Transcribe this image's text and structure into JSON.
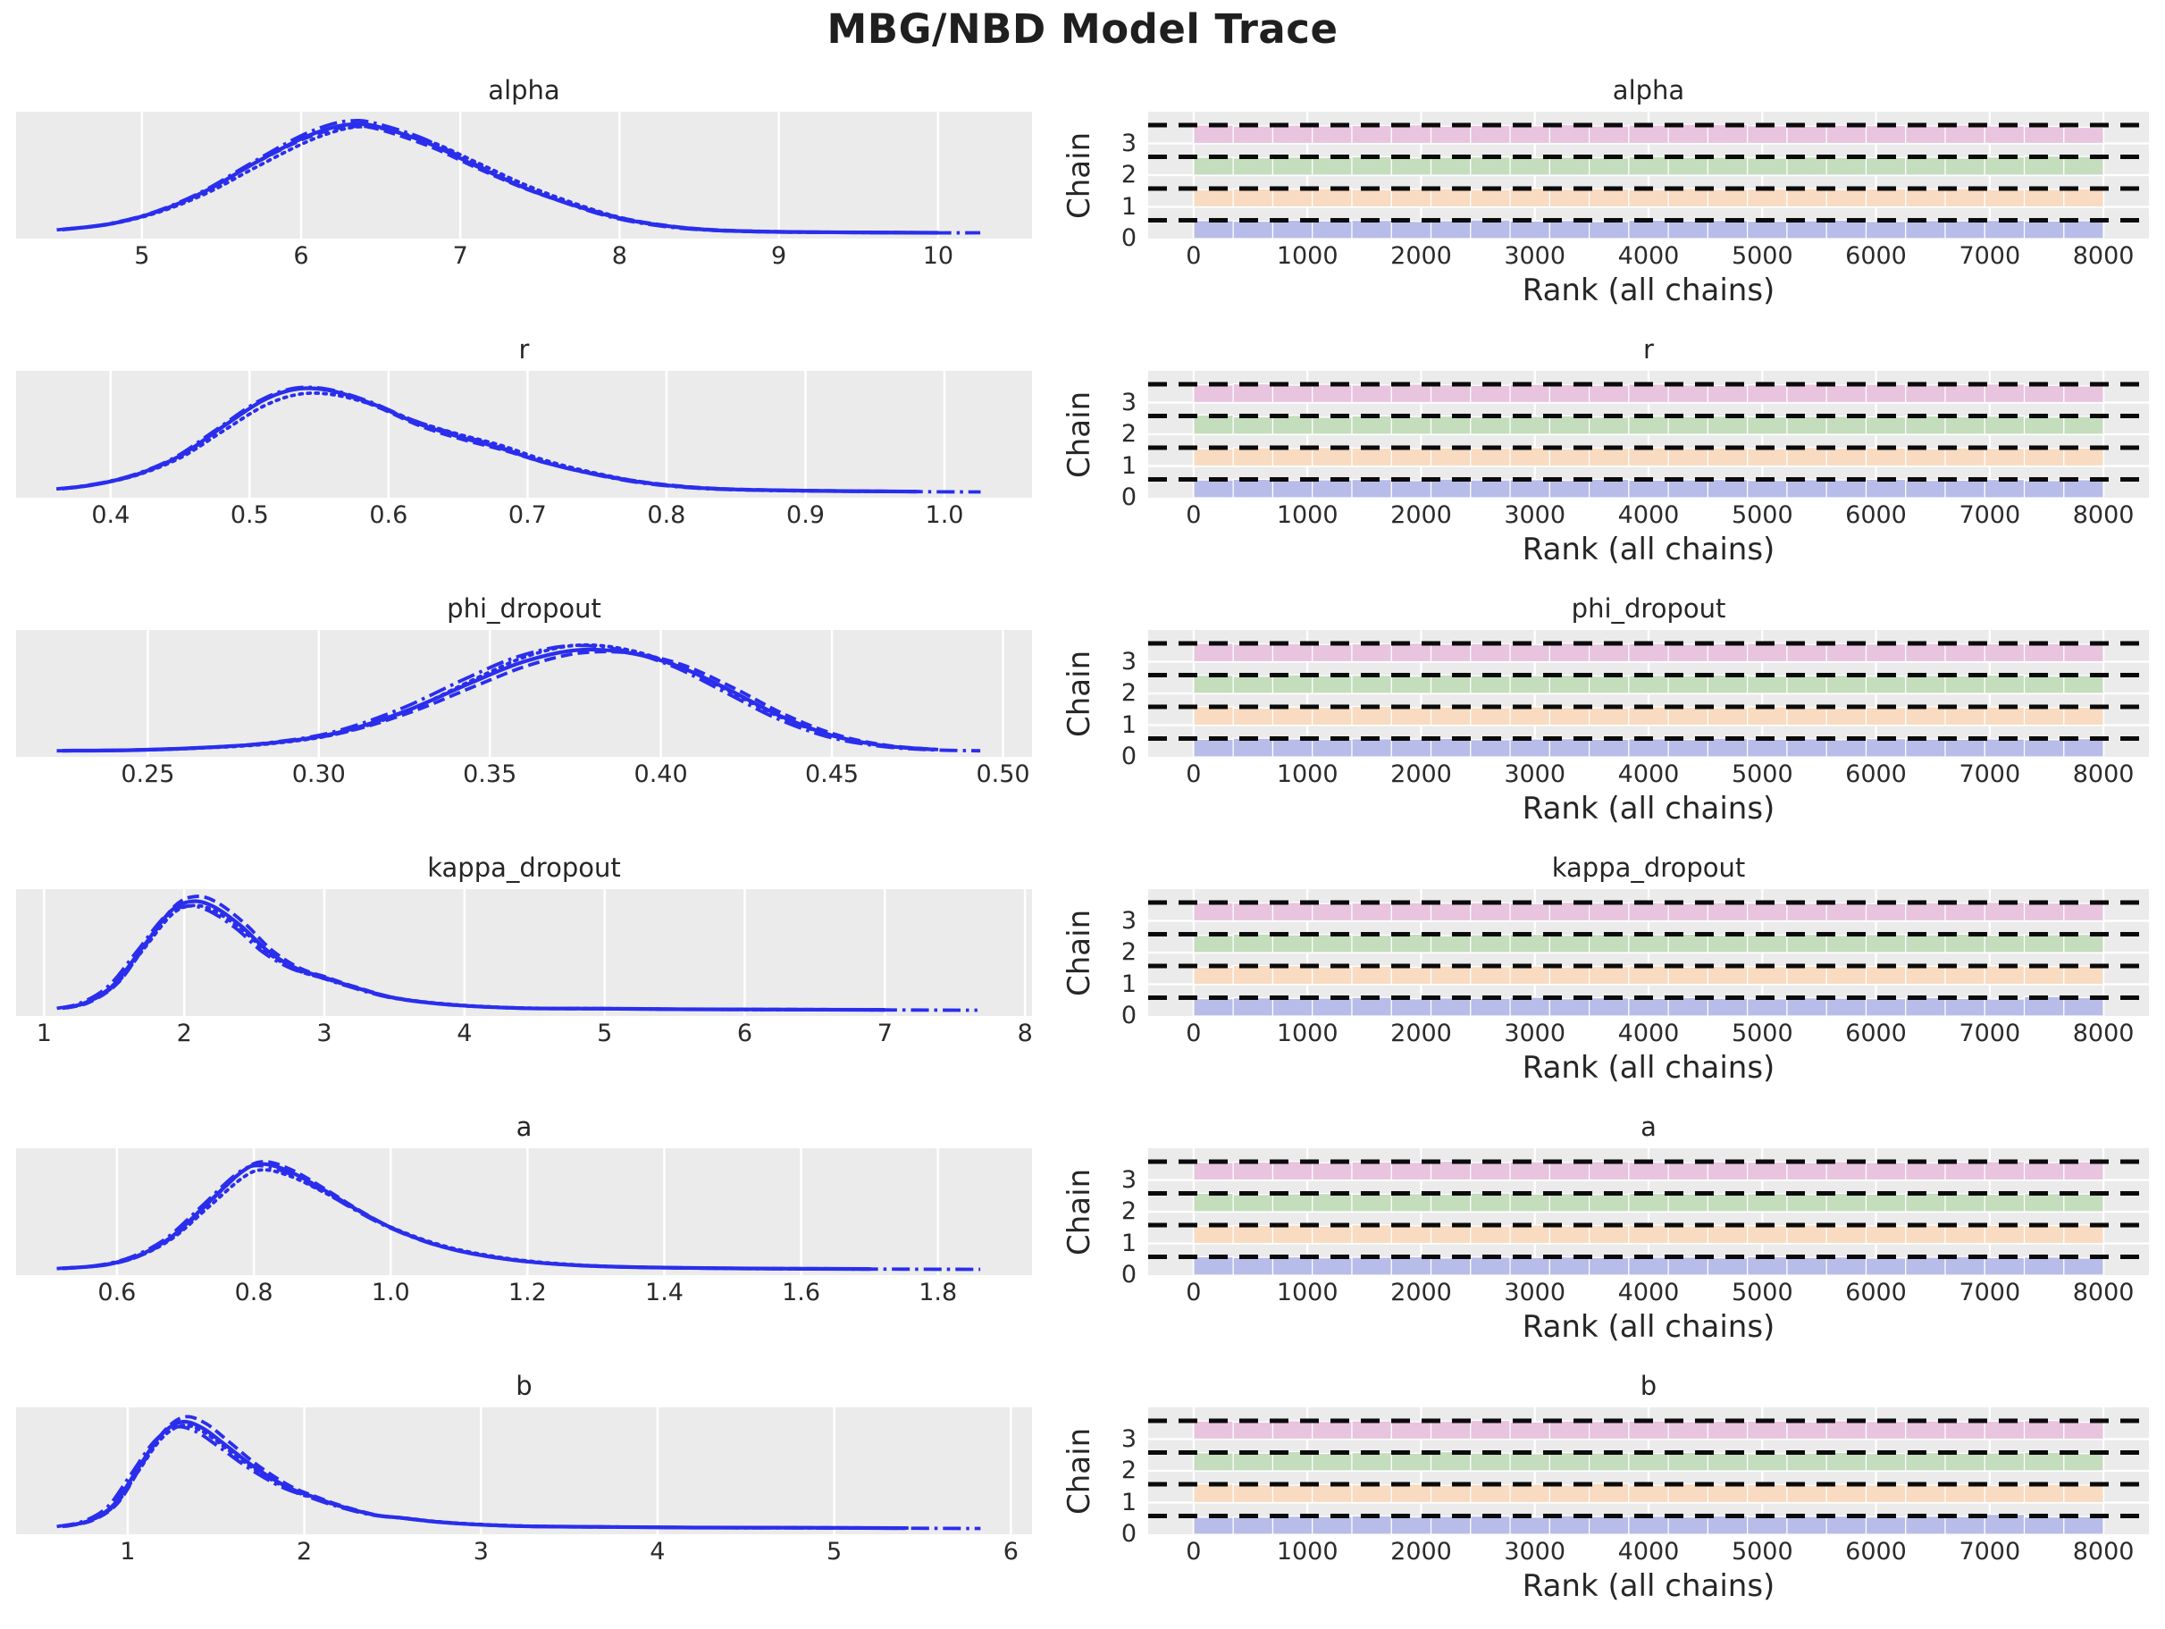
{
  "title": "MBG/NBD Model Trace",
  "colors": {
    "figure_bg": "#ffffff",
    "axes_bg": "#ebebeb",
    "grid": "#ffffff",
    "kde_line": "#2a2eec",
    "reference_dash": "#0a0a0a",
    "text": "#262626",
    "chain_bar_colors": [
      "#b7bce9",
      "#f8dbc0",
      "#c4ddbd",
      "#e8c4df"
    ]
  },
  "axes": {
    "rank_xlabel": "Rank (all chains)",
    "rank_ylabel": "Chain",
    "chain_tick_labels": [
      "0",
      "1",
      "2",
      "3"
    ],
    "rank_tick_values": [
      0,
      1000,
      2000,
      3000,
      4000,
      5000,
      6000,
      7000,
      8000
    ],
    "rank_tick_labels": [
      "0",
      "1000",
      "2000",
      "3000",
      "4000",
      "5000",
      "6000",
      "7000",
      "8000"
    ],
    "rank_xlim": [
      -400,
      8400
    ],
    "rank_bar_range": [
      0,
      8000
    ],
    "rank_bins": 23
  },
  "chains": [
    {
      "id": 0,
      "linestyle": "solid"
    },
    {
      "id": 1,
      "linestyle": "dashed"
    },
    {
      "id": 2,
      "linestyle": "dotted"
    },
    {
      "id": 3,
      "linestyle": "dashdot"
    }
  ],
  "height_patterns": {
    "A": [
      1.01,
      0.97,
      1.03,
      0.99,
      1.02,
      0.96,
      1.0,
      1.04,
      0.98,
      1.01,
      0.95,
      1.03,
      0.99,
      1.02,
      0.97,
      1.0,
      1.03,
      0.96,
      1.01,
      0.99,
      1.02,
      0.98,
      1.0
    ],
    "B": [
      0.98,
      1.02,
      0.96,
      1.01,
      0.99,
      1.03,
      0.97,
      1.0,
      1.02,
      0.96,
      1.04,
      0.99,
      1.01,
      0.97,
      1.03,
      0.98,
      1.0,
      1.02,
      0.97,
      1.01,
      0.99,
      1.03,
      0.97
    ],
    "C": [
      1.0,
      0.96,
      1.02,
      0.98,
      1.04,
      1.0,
      0.97,
      1.01,
      0.99,
      1.03,
      0.96,
      1.0,
      1.02,
      0.98,
      1.01,
      0.97,
      1.04,
      0.99,
      1.01,
      0.96,
      1.02,
      0.99,
      0.98
    ],
    "D": [
      0.99,
      1.03,
      0.97,
      1.02,
      0.98,
      1.0,
      1.04,
      0.96,
      1.01,
      0.99,
      1.05,
      0.97,
      1.02,
      0.98,
      1.03,
      0.99,
      0.96,
      1.02,
      1.0,
      0.97,
      1.03,
      0.98,
      0.95
    ]
  },
  "chart_data": [
    {
      "name": "alpha",
      "type": "kde+rank",
      "kde": {
        "xlim": [
          4.21,
          10.59
        ],
        "tick_values": [
          5,
          6,
          7,
          8,
          9,
          10
        ],
        "tick_labels": [
          "5",
          "6",
          "7",
          "8",
          "9",
          "10"
        ],
        "x": [
          4.5,
          4.8,
          5.1,
          5.4,
          5.7,
          6.0,
          6.2,
          6.35,
          6.5,
          6.8,
          7.1,
          7.4,
          7.7,
          8.0,
          8.3,
          8.6,
          9.0,
          9.5,
          10.0,
          10.3
        ],
        "density": [
          0.04,
          0.09,
          0.2,
          0.38,
          0.62,
          0.84,
          0.94,
          0.97,
          0.94,
          0.8,
          0.6,
          0.41,
          0.26,
          0.14,
          0.07,
          0.035,
          0.02,
          0.015,
          0.012,
          0.012
        ]
      },
      "rank_chains": [
        {
          "pattern": "A",
          "rot": 0,
          "bumps": {}
        },
        {
          "pattern": "B",
          "rot": 2,
          "bumps": {}
        },
        {
          "pattern": "C",
          "rot": 5,
          "bumps": {
            "21": 1.07
          }
        },
        {
          "pattern": "D",
          "rot": 1,
          "bumps": {
            "12": 1.07,
            "13": 1.06,
            "22": 0.9
          }
        }
      ]
    },
    {
      "name": "r",
      "type": "kde+rank",
      "kde": {
        "xlim": [
          0.332,
          1.063
        ],
        "tick_values": [
          0.4,
          0.5,
          0.6,
          0.7,
          0.8,
          0.9,
          1.0
        ],
        "tick_labels": [
          "0.4",
          "0.5",
          "0.6",
          "0.7",
          "0.8",
          "0.9",
          "1.0"
        ],
        "x": [
          0.365,
          0.39,
          0.42,
          0.45,
          0.48,
          0.51,
          0.535,
          0.56,
          0.59,
          0.62,
          0.65,
          0.68,
          0.71,
          0.74,
          0.78,
          0.82,
          0.86,
          0.92,
          0.98,
          1.03
        ],
        "density": [
          0.04,
          0.08,
          0.17,
          0.33,
          0.58,
          0.82,
          0.92,
          0.9,
          0.78,
          0.62,
          0.5,
          0.4,
          0.28,
          0.19,
          0.1,
          0.05,
          0.03,
          0.02,
          0.015,
          0.012
        ]
      },
      "rank_chains": [
        {
          "pattern": "B",
          "rot": 4,
          "bumps": {}
        },
        {
          "pattern": "C",
          "rot": 1,
          "bumps": {}
        },
        {
          "pattern": "A",
          "rot": 7,
          "bumps": {
            "0": 1.08,
            "2": 1.06
          }
        },
        {
          "pattern": "D",
          "rot": 9,
          "bumps": {
            "22": 0.93
          }
        }
      ]
    },
    {
      "name": "phi_dropout",
      "type": "kde+rank",
      "kde": {
        "xlim": [
          0.2115,
          0.5085
        ],
        "tick_values": [
          0.25,
          0.3,
          0.35,
          0.4,
          0.45,
          0.5
        ],
        "tick_labels": [
          "0.25",
          "0.30",
          "0.35",
          "0.40",
          "0.45",
          "0.50"
        ],
        "x": [
          0.225,
          0.245,
          0.265,
          0.285,
          0.305,
          0.325,
          0.345,
          0.36,
          0.375,
          0.39,
          0.405,
          0.42,
          0.435,
          0.45,
          0.465,
          0.48,
          0.495
        ],
        "density": [
          0.015,
          0.02,
          0.04,
          0.08,
          0.17,
          0.36,
          0.62,
          0.8,
          0.9,
          0.88,
          0.76,
          0.55,
          0.32,
          0.15,
          0.06,
          0.025,
          0.015
        ]
      },
      "rank_chains": [
        {
          "pattern": "C",
          "rot": 3,
          "bumps": {}
        },
        {
          "pattern": "D",
          "rot": 6,
          "bumps": {}
        },
        {
          "pattern": "B",
          "rot": 8,
          "bumps": {}
        },
        {
          "pattern": "A",
          "rot": 2,
          "bumps": {}
        }
      ]
    },
    {
      "name": "kappa_dropout",
      "type": "kde+rank",
      "kde": {
        "xlim": [
          0.8,
          8.05
        ],
        "tick_values": [
          1,
          2,
          3,
          4,
          5,
          6,
          7,
          8
        ],
        "tick_labels": [
          "1",
          "2",
          "3",
          "4",
          "5",
          "6",
          "7",
          "8"
        ],
        "x": [
          1.13,
          1.3,
          1.5,
          1.7,
          1.9,
          2.05,
          2.2,
          2.4,
          2.6,
          2.8,
          3.0,
          3.2,
          3.5,
          3.9,
          4.4,
          5.0,
          5.6,
          6.3,
          7.0,
          7.7
        ],
        "density": [
          0.03,
          0.08,
          0.24,
          0.56,
          0.88,
          0.97,
          0.93,
          0.76,
          0.53,
          0.38,
          0.3,
          0.22,
          0.12,
          0.06,
          0.03,
          0.025,
          0.02,
          0.017,
          0.015,
          0.012
        ]
      },
      "rank_chains": [
        {
          "pattern": "D",
          "rot": 2,
          "bumps": {
            "21": 1.09
          }
        },
        {
          "pattern": "A",
          "rot": 5,
          "bumps": {
            "1": 1.05
          }
        },
        {
          "pattern": "B",
          "rot": 9,
          "bumps": {
            "6": 0.94
          }
        },
        {
          "pattern": "C",
          "rot": 7,
          "bumps": {}
        }
      ]
    },
    {
      "name": "a",
      "type": "kde+rank",
      "kde": {
        "xlim": [
          0.4525,
          1.9375
        ],
        "tick_values": [
          0.6,
          0.8,
          1.0,
          1.2,
          1.4,
          1.6,
          1.8
        ],
        "tick_labels": [
          "0.6",
          "0.8",
          "1.0",
          "1.2",
          "1.4",
          "1.6",
          "1.8"
        ],
        "x": [
          0.52,
          0.58,
          0.63,
          0.68,
          0.73,
          0.78,
          0.81,
          0.85,
          0.9,
          0.95,
          1.0,
          1.06,
          1.12,
          1.2,
          1.3,
          1.42,
          1.56,
          1.7,
          1.87
        ],
        "density": [
          0.02,
          0.05,
          0.13,
          0.3,
          0.58,
          0.86,
          0.94,
          0.88,
          0.72,
          0.54,
          0.38,
          0.24,
          0.15,
          0.08,
          0.04,
          0.025,
          0.018,
          0.015,
          0.012
        ]
      },
      "rank_chains": [
        {
          "pattern": "A",
          "rot": 11,
          "bumps": {}
        },
        {
          "pattern": "B",
          "rot": 6,
          "bumps": {}
        },
        {
          "pattern": "C",
          "rot": 9,
          "bumps": {}
        },
        {
          "pattern": "D",
          "rot": 4,
          "bumps": {}
        }
      ]
    },
    {
      "name": "b",
      "type": "kde+rank",
      "kde": {
        "xlim": [
          0.368,
          6.12
        ],
        "tick_values": [
          1,
          2,
          3,
          4,
          5,
          6
        ],
        "tick_labels": [
          "1",
          "2",
          "3",
          "4",
          "5",
          "6"
        ],
        "x": [
          0.63,
          0.78,
          0.92,
          1.05,
          1.18,
          1.3,
          1.42,
          1.56,
          1.72,
          1.9,
          2.05,
          2.2,
          2.4,
          2.55,
          2.75,
          3.0,
          3.3,
          3.7,
          4.2,
          4.8,
          5.4,
          5.86
        ],
        "density": [
          0.03,
          0.08,
          0.22,
          0.52,
          0.82,
          0.95,
          0.9,
          0.74,
          0.55,
          0.38,
          0.29,
          0.21,
          0.13,
          0.105,
          0.07,
          0.045,
          0.03,
          0.025,
          0.02,
          0.018,
          0.015,
          0.012
        ]
      },
      "rank_chains": [
        {
          "pattern": "B",
          "rot": 1,
          "bumps": {
            "20": 1.12,
            "0": 0.95
          }
        },
        {
          "pattern": "C",
          "rot": 4,
          "bumps": {
            "10": 1.07
          }
        },
        {
          "pattern": "D",
          "rot": 8,
          "bumps": {
            "2": 1.08,
            "6": 1.07
          }
        },
        {
          "pattern": "A",
          "rot": 9,
          "bumps": {
            "7": 1.05,
            "22": 0.94
          }
        }
      ]
    }
  ]
}
